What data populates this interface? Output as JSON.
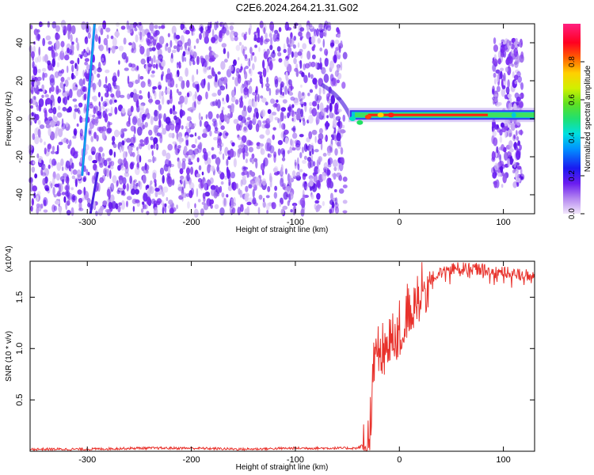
{
  "title": "C2E6.2024.264.21.31.G02",
  "chart_data": [
    {
      "type": "heatmap",
      "title": "C2E6.2024.264.21.31.G02",
      "xlabel": "Height of straight line (km)",
      "ylabel": "Frequency (Hz)",
      "xlim": [
        -355,
        130
      ],
      "ylim": [
        -50,
        50
      ],
      "xticks": [
        -300,
        -200,
        -100,
        0,
        100
      ],
      "yticks": [
        -40,
        -20,
        0,
        20,
        40
      ],
      "colorbar": {
        "label": "Normalized spectral amplitude",
        "range": [
          0,
          1
        ],
        "ticks": [
          "0.0",
          "0.2",
          "0.4",
          "0.6",
          "0.8"
        ],
        "colormap": "rainbow (white-violet-blue-cyan-green-yellow-red-magenta)"
      },
      "features": {
        "noise_region_km": [
          -355,
          -52
        ],
        "tone_frequency_hz": 2,
        "tone_start_km": -52,
        "tone_end_km": 130,
        "noise_burst_km": [
          90,
          118
        ],
        "diagonal_trace": {
          "x_km": [
            -305,
            -293
          ],
          "y_hz": [
            -30,
            50
          ]
        }
      }
    },
    {
      "type": "line",
      "xlabel": "Height of straight line (km)",
      "ylabel": "SNR (10 * v/v)",
      "exponent_label": "(x10^4)",
      "xlim": [
        -355,
        130
      ],
      "ylim": [
        0,
        1.85
      ],
      "xticks": [
        -300,
        -200,
        -100,
        0,
        100
      ],
      "yticks": [
        0.5,
        1.0,
        1.5
      ],
      "ytick_labels": [
        "0.5",
        "1.0",
        "1.5"
      ],
      "series": [
        {
          "color": "#e8322c",
          "x": [
            -355,
            -300,
            -250,
            -200,
            -150,
            -100,
            -60,
            -40,
            -32,
            -28,
            -25,
            -22,
            -20,
            -15,
            -10,
            -5,
            0,
            5,
            10,
            20,
            30,
            40,
            50,
            60,
            70,
            80,
            90,
            100,
            110,
            120,
            130
          ],
          "values": [
            0.02,
            0.02,
            0.03,
            0.03,
            0.02,
            0.03,
            0.03,
            0.03,
            0.08,
            0.3,
            0.8,
            1.1,
            0.95,
            1.0,
            1.05,
            1.1,
            1.2,
            1.3,
            1.4,
            1.55,
            1.68,
            1.74,
            1.78,
            1.78,
            1.78,
            1.77,
            1.75,
            1.74,
            1.73,
            1.72,
            1.72
          ]
        }
      ]
    }
  ]
}
